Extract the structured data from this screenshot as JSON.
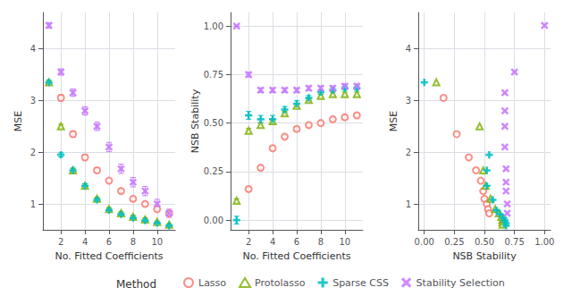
{
  "chart_data": [
    {
      "type": "scatter",
      "xlabel": "No. Fitted Coefficients",
      "ylabel": "MSE",
      "xlim": [
        0.5,
        11.5
      ],
      "ylim": [
        0.5,
        4.7
      ],
      "xticks": [
        2,
        4,
        6,
        8,
        10
      ],
      "yticks": [
        1,
        2,
        3,
        4
      ],
      "grid": true,
      "legend": "bottom",
      "legend_title": "Method",
      "series": [
        {
          "name": "Lasso",
          "color": "#F8766D",
          "marker": "circle",
          "x": [
            2,
            3,
            4,
            5,
            6,
            7,
            8,
            9,
            10,
            11
          ],
          "values": [
            3.05,
            2.35,
            1.9,
            1.65,
            1.45,
            1.25,
            1.1,
            1.0,
            0.9,
            0.82
          ],
          "errors": [
            0.06,
            0.06,
            0.05,
            0.05,
            0.04,
            0.04,
            0.04,
            0.04,
            0.04,
            0.03
          ]
        },
        {
          "name": "Protolasso",
          "color": "#7CAE00",
          "marker": "triangle",
          "x": [
            1,
            2,
            3,
            4,
            5,
            6,
            7,
            8,
            9,
            10,
            11
          ],
          "values": [
            3.35,
            2.5,
            1.65,
            1.35,
            1.1,
            0.9,
            0.82,
            0.75,
            0.7,
            0.65,
            0.6
          ],
          "errors": [
            0.04,
            0.04,
            0.04,
            0.04,
            0.03,
            0.03,
            0.03,
            0.03,
            0.03,
            0.02,
            0.02
          ]
        },
        {
          "name": "Sparse CSS",
          "color": "#00BFC4",
          "marker": "plus",
          "x": [
            1,
            2,
            3,
            4,
            5,
            6,
            7,
            8,
            9,
            10,
            11
          ],
          "values": [
            3.35,
            1.95,
            1.65,
            1.35,
            1.08,
            0.88,
            0.8,
            0.73,
            0.68,
            0.63,
            0.58
          ],
          "errors": [
            0.04,
            0.04,
            0.04,
            0.04,
            0.03,
            0.03,
            0.03,
            0.03,
            0.03,
            0.02,
            0.02
          ]
        },
        {
          "name": "Stability Selection",
          "color": "#C77CFF",
          "marker": "x",
          "x": [
            1,
            2,
            3,
            4,
            5,
            6,
            7,
            8,
            9,
            10,
            11
          ],
          "values": [
            4.45,
            3.55,
            3.15,
            2.8,
            2.5,
            2.1,
            1.68,
            1.42,
            1.25,
            1.0,
            0.82
          ],
          "errors": [
            0.05,
            0.06,
            0.07,
            0.08,
            0.08,
            0.09,
            0.09,
            0.09,
            0.09,
            0.09,
            0.08
          ]
        }
      ]
    },
    {
      "type": "scatter",
      "xlabel": "No. Fitted Coefficients",
      "ylabel": "NSB Stability",
      "xlim": [
        0.5,
        11.5
      ],
      "ylim": [
        -0.05,
        1.07
      ],
      "xticks": [
        2,
        4,
        6,
        8,
        10
      ],
      "yticks": [
        {
          "value": 0.0,
          "label": "0.00"
        },
        0.25,
        {
          "value": 0.5,
          "label": "0.50"
        },
        0.75,
        {
          "value": 1.0,
          "label": "1.00"
        }
      ],
      "grid": true,
      "series": [
        {
          "name": "Lasso",
          "color": "#F8766D",
          "marker": "circle",
          "x": [
            2,
            3,
            4,
            5,
            6,
            7,
            8,
            9,
            10,
            11
          ],
          "values": [
            0.16,
            0.27,
            0.37,
            0.43,
            0.47,
            0.49,
            0.5,
            0.52,
            0.53,
            0.54
          ],
          "errors": [
            0.012,
            0.012,
            0.012,
            0.01,
            0.01,
            0.01,
            0.01,
            0.01,
            0.01,
            0.01
          ]
        },
        {
          "name": "Protolasso",
          "color": "#7CAE00",
          "marker": "triangle",
          "x": [
            1,
            2,
            3,
            4,
            5,
            6,
            7,
            8,
            9,
            10,
            11
          ],
          "values": [
            0.1,
            0.46,
            0.49,
            0.51,
            0.55,
            0.59,
            0.62,
            0.64,
            0.65,
            0.65,
            0.65
          ],
          "errors": [
            0.01,
            0.012,
            0.012,
            0.012,
            0.01,
            0.01,
            0.01,
            0.01,
            0.01,
            0.01,
            0.01
          ]
        },
        {
          "name": "Sparse CSS",
          "color": "#00BFC4",
          "marker": "plus",
          "x": [
            1,
            2,
            3,
            4,
            5,
            6,
            7,
            8,
            9,
            10,
            11
          ],
          "values": [
            0.0,
            0.54,
            0.52,
            0.52,
            0.57,
            0.6,
            0.63,
            0.66,
            0.67,
            0.68,
            0.68
          ],
          "errors": [
            0.02,
            0.02,
            0.02,
            0.02,
            0.015,
            0.015,
            0.012,
            0.012,
            0.01,
            0.01,
            0.01
          ]
        },
        {
          "name": "Stability Selection",
          "color": "#C77CFF",
          "marker": "x",
          "x": [
            1,
            2,
            3,
            4,
            5,
            6,
            7,
            8,
            9,
            10,
            11
          ],
          "values": [
            1.0,
            0.75,
            0.67,
            0.67,
            0.67,
            0.67,
            0.68,
            0.68,
            0.68,
            0.69,
            0.69
          ],
          "errors": [
            0.0,
            0.012,
            0.012,
            0.012,
            0.012,
            0.012,
            0.012,
            0.012,
            0.012,
            0.012,
            0.012
          ]
        }
      ]
    },
    {
      "type": "scatter",
      "xlabel": "NSB Stability",
      "ylabel": "MSE",
      "xlim": [
        -0.05,
        1.05
      ],
      "ylim": [
        0.5,
        4.7
      ],
      "xticks": [
        {
          "value": 0.0,
          "label": "0.00"
        },
        0.25,
        {
          "value": 0.5,
          "label": "0.50"
        },
        0.75,
        {
          "value": 1.0,
          "label": "1.00"
        }
      ],
      "yticks": [
        1,
        2,
        3,
        4
      ],
      "grid": true,
      "series": [
        {
          "name": "Lasso",
          "color": "#F8766D",
          "marker": "circle",
          "x": [
            0.16,
            0.27,
            0.37,
            0.43,
            0.47,
            0.49,
            0.5,
            0.52,
            0.53,
            0.54
          ],
          "values": [
            3.05,
            2.35,
            1.9,
            1.65,
            1.45,
            1.25,
            1.1,
            1.0,
            0.9,
            0.82
          ]
        },
        {
          "name": "Protolasso",
          "color": "#7CAE00",
          "marker": "triangle",
          "x": [
            0.1,
            0.46,
            0.49,
            0.51,
            0.55,
            0.59,
            0.62,
            0.64,
            0.65,
            0.65,
            0.65
          ],
          "values": [
            3.35,
            2.5,
            1.65,
            1.35,
            1.1,
            0.9,
            0.82,
            0.75,
            0.7,
            0.65,
            0.6
          ]
        },
        {
          "name": "Sparse CSS",
          "color": "#00BFC4",
          "marker": "plus",
          "x": [
            0.0,
            0.54,
            0.52,
            0.52,
            0.57,
            0.6,
            0.63,
            0.66,
            0.67,
            0.68,
            0.68
          ],
          "values": [
            3.35,
            1.95,
            1.65,
            1.35,
            1.08,
            0.88,
            0.8,
            0.73,
            0.68,
            0.63,
            0.58
          ]
        },
        {
          "name": "Stability Selection",
          "color": "#C77CFF",
          "marker": "x",
          "x": [
            1.0,
            0.75,
            0.67,
            0.67,
            0.67,
            0.67,
            0.68,
            0.68,
            0.68,
            0.69,
            0.69
          ],
          "values": [
            4.45,
            3.55,
            3.15,
            2.8,
            2.5,
            2.1,
            1.68,
            1.42,
            1.25,
            1.0,
            0.82
          ]
        }
      ]
    }
  ]
}
